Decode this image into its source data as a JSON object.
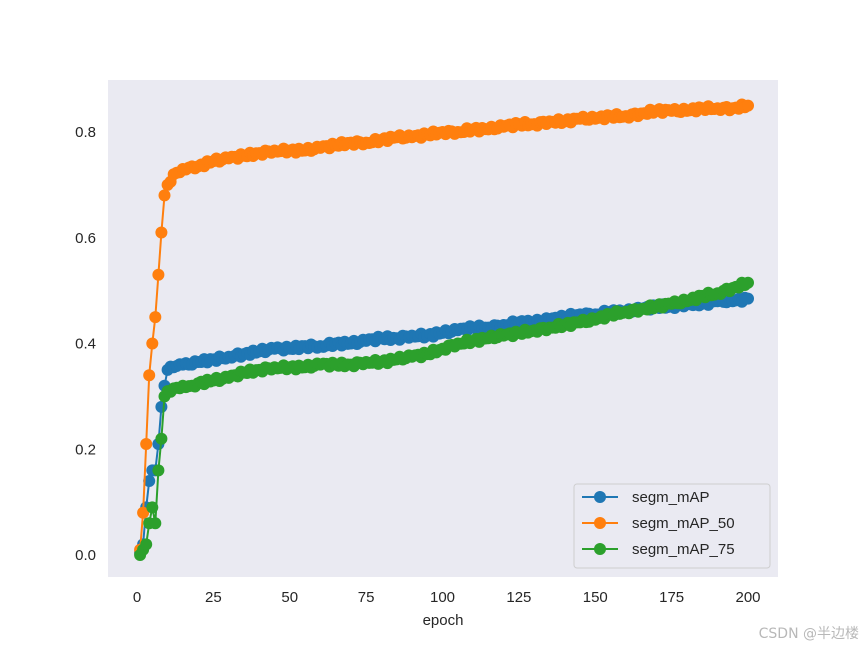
{
  "chart_data": {
    "type": "line",
    "title": "",
    "xlabel": "epoch",
    "ylabel": "",
    "xlim": [
      -10,
      210
    ],
    "ylim": [
      -0.045,
      0.89
    ],
    "xticks": [
      0,
      25,
      50,
      75,
      100,
      125,
      150,
      175,
      200
    ],
    "yticks": [
      0.0,
      0.2,
      0.4,
      0.6,
      0.8
    ],
    "ytick_labels": [
      "0.0",
      "0.2",
      "0.4",
      "0.6",
      "0.8"
    ],
    "grid": false,
    "background": "#eaeaf2",
    "marker": "circle",
    "legend": {
      "position": "lower right",
      "entries": [
        "segm_mAP",
        "segm_mAP_50",
        "segm_mAP_75"
      ]
    },
    "x": [
      1,
      2,
      3,
      4,
      5,
      6,
      7,
      8,
      9,
      10,
      12,
      15,
      18,
      20,
      25,
      30,
      35,
      40,
      45,
      50,
      55,
      60,
      65,
      70,
      75,
      80,
      85,
      90,
      95,
      100,
      105,
      110,
      115,
      120,
      125,
      130,
      135,
      140,
      145,
      150,
      155,
      160,
      165,
      170,
      175,
      180,
      185,
      190,
      195,
      200
    ],
    "series": [
      {
        "name": "segm_mAP",
        "color": "#1f77b4",
        "values": [
          0.005,
          0.02,
          0.09,
          0.14,
          0.16,
          0.16,
          0.21,
          0.28,
          0.32,
          0.35,
          0.355,
          0.36,
          0.36,
          0.365,
          0.37,
          0.375,
          0.38,
          0.385,
          0.39,
          0.39,
          0.395,
          0.395,
          0.4,
          0.4,
          0.405,
          0.41,
          0.41,
          0.415,
          0.415,
          0.42,
          0.425,
          0.43,
          0.43,
          0.435,
          0.44,
          0.44,
          0.445,
          0.45,
          0.455,
          0.455,
          0.46,
          0.46,
          0.465,
          0.47,
          0.47,
          0.475,
          0.475,
          0.48,
          0.48,
          0.485
        ]
      },
      {
        "name": "segm_mAP_50",
        "color": "#ff7f0e",
        "values": [
          0.01,
          0.08,
          0.21,
          0.34,
          0.4,
          0.45,
          0.53,
          0.61,
          0.68,
          0.7,
          0.72,
          0.73,
          0.735,
          0.735,
          0.745,
          0.75,
          0.755,
          0.76,
          0.765,
          0.765,
          0.765,
          0.77,
          0.775,
          0.78,
          0.78,
          0.785,
          0.79,
          0.79,
          0.795,
          0.8,
          0.8,
          0.805,
          0.805,
          0.81,
          0.815,
          0.815,
          0.82,
          0.82,
          0.825,
          0.825,
          0.83,
          0.83,
          0.835,
          0.84,
          0.84,
          0.84,
          0.845,
          0.845,
          0.845,
          0.85
        ]
      },
      {
        "name": "segm_mAP_75",
        "color": "#2ca02c",
        "values": [
          0.0,
          0.01,
          0.02,
          0.06,
          0.09,
          0.06,
          0.16,
          0.22,
          0.3,
          0.31,
          0.315,
          0.32,
          0.32,
          0.325,
          0.33,
          0.335,
          0.345,
          0.35,
          0.355,
          0.355,
          0.355,
          0.36,
          0.36,
          0.36,
          0.365,
          0.365,
          0.37,
          0.375,
          0.38,
          0.39,
          0.4,
          0.405,
          0.41,
          0.415,
          0.42,
          0.425,
          0.43,
          0.435,
          0.44,
          0.445,
          0.455,
          0.46,
          0.465,
          0.47,
          0.475,
          0.48,
          0.49,
          0.495,
          0.505,
          0.515
        ]
      }
    ]
  },
  "watermark": "CSDN @半边楼"
}
